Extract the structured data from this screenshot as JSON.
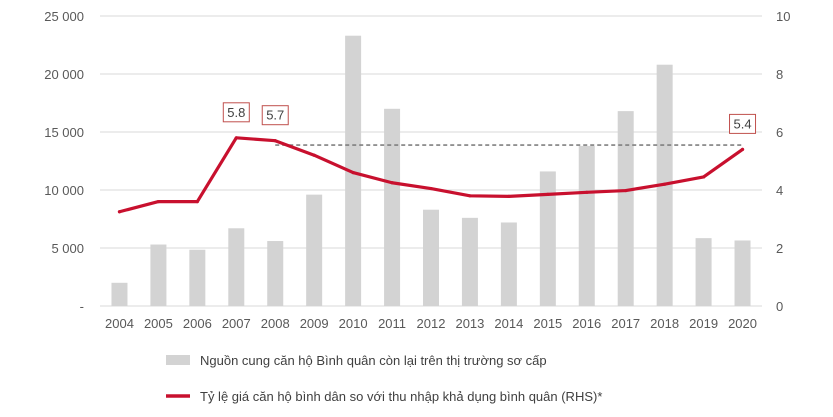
{
  "chart_data": {
    "type": "bar",
    "categories": [
      "2004",
      "2005",
      "2006",
      "2007",
      "2008",
      "2009",
      "2010",
      "2011",
      "2012",
      "2013",
      "2014",
      "2015",
      "2016",
      "2017",
      "2018",
      "2019",
      "2020"
    ],
    "series": [
      {
        "name": "Nguồn cung căn hộ Bình quân còn lại trên thị trường sơ cấp",
        "type": "bar",
        "axis": "left",
        "color": "#d3d3d3",
        "values": [
          2000,
          5300,
          4850,
          6700,
          5600,
          9600,
          23300,
          17000,
          8300,
          7600,
          7200,
          11600,
          13800,
          16800,
          20800,
          5850,
          5650
        ]
      },
      {
        "name": "Tỷ lệ giá căn hộ bình dân so với thu nhập khả dụng bình quân (RHS)*",
        "type": "line",
        "axis": "right",
        "color": "#c8102e",
        "values": [
          3.25,
          3.6,
          3.6,
          5.8,
          5.7,
          5.2,
          4.6,
          4.25,
          4.05,
          3.8,
          3.78,
          3.85,
          3.92,
          3.98,
          4.2,
          4.45,
          5.4
        ]
      }
    ],
    "y_left": {
      "ylim": [
        0,
        25000
      ],
      "ticks": [
        "-",
        "5 000",
        "10 000",
        "15 000",
        "20 000",
        "25 000"
      ]
    },
    "y_right": {
      "ylim": [
        0,
        10
      ],
      "ticks": [
        "0",
        "2",
        "4",
        "6",
        "8",
        "10"
      ]
    },
    "callouts": [
      {
        "label": "5.8",
        "category": "2007",
        "value": 5.8
      },
      {
        "label": "5.7",
        "category": "2008",
        "value": 5.7
      },
      {
        "label": "5.4",
        "category": "2020",
        "value": 5.4
      }
    ],
    "reference_line": {
      "from": "2008",
      "to": "2020",
      "value": 5.55,
      "style": "dashed",
      "color": "#808080"
    },
    "legend_position": "bottom-center",
    "grid": "horizontal"
  }
}
